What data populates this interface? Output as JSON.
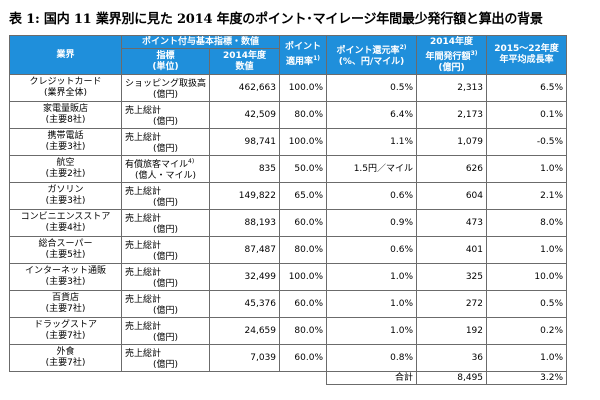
{
  "title": "表 1: 国内 11 業界別に見た 2014 年度のポイント･マイレージ年間最少発行額と算出の背景",
  "headers": {
    "industry": "業界",
    "basis_group": "ポイント付与基本指標・数値",
    "indicator": "指標",
    "indicator_unit": "(単位)",
    "value": "2014年度",
    "value_sub": "数値",
    "rate": "ポイント",
    "rate_sub": "適用率",
    "rate_note": "1)",
    "return": "ポイント還元率",
    "return_note": "2)",
    "return_sub": "(%、円/マイル)",
    "issue": "2014年度",
    "issue_sub": "年間発行額",
    "issue_note": "3)",
    "issue_unit": "(億円)",
    "cagr": "2015～22年度",
    "cagr_sub": "年平均成長率"
  },
  "rows": [
    {
      "name": "クレジットカード",
      "sub": "(業界全体)",
      "metric": "ショッピング取扱高",
      "metric_unit": "(億円)",
      "value": "462,663",
      "rate": "100.0%",
      "return": "0.5%",
      "issue": "2,313",
      "cagr": "6.5%"
    },
    {
      "name": "家電量販店",
      "sub": "(主要8社)",
      "metric": "売上総計",
      "metric_unit": "(億円)",
      "value": "42,509",
      "rate": "80.0%",
      "return": "6.4%",
      "issue": "2,173",
      "cagr": "0.1%"
    },
    {
      "name": "携帯電話",
      "sub": "(主要3社)",
      "metric": "売上総計",
      "metric_unit": "(億円)",
      "value": "98,741",
      "rate": "100.0%",
      "return": "1.1%",
      "issue": "1,079",
      "cagr": "-0.5%"
    },
    {
      "name": "航空",
      "sub": "(主要2社)",
      "metric": "有償旅客マイル",
      "metric_note": "4)",
      "metric_unit": "(億人・マイル)",
      "value": "835",
      "rate": "50.0%",
      "return": "1.5円／マイル",
      "issue": "626",
      "cagr": "1.0%"
    },
    {
      "name": "ガソリン",
      "sub": "(主要3社)",
      "metric": "売上総計",
      "metric_unit": "(億円)",
      "value": "149,822",
      "rate": "65.0%",
      "return": "0.6%",
      "issue": "604",
      "cagr": "2.1%"
    },
    {
      "name": "コンビニエンスストア",
      "sub": "(主要4社)",
      "metric": "売上総計",
      "metric_unit": "(億円)",
      "value": "88,193",
      "rate": "60.0%",
      "return": "0.9%",
      "issue": "473",
      "cagr": "8.0%"
    },
    {
      "name": "総合スーパー",
      "sub": "(主要5社)",
      "metric": "売上総計",
      "metric_unit": "(億円)",
      "value": "87,487",
      "rate": "80.0%",
      "return": "0.6%",
      "issue": "401",
      "cagr": "1.0%"
    },
    {
      "name": "インターネット通販",
      "sub": "(主要3社)",
      "metric": "売上総計",
      "metric_unit": "(億円)",
      "value": "32,499",
      "rate": "100.0%",
      "return": "1.0%",
      "issue": "325",
      "cagr": "10.0%"
    },
    {
      "name": "百貨店",
      "sub": "(主要7社)",
      "metric": "売上総計",
      "metric_unit": "(億円)",
      "value": "45,376",
      "rate": "60.0%",
      "return": "1.0%",
      "issue": "272",
      "cagr": "0.5%"
    },
    {
      "name": "ドラッグストア",
      "sub": "(主要7社)",
      "metric": "売上総計",
      "metric_unit": "(億円)",
      "value": "24,659",
      "rate": "80.0%",
      "return": "1.0%",
      "issue": "192",
      "cagr": "0.2%"
    },
    {
      "name": "外食",
      "sub": "(主要7社)",
      "metric": "売上総計",
      "metric_unit": "(億円)",
      "value": "7,039",
      "rate": "60.0%",
      "return": "0.8%",
      "issue": "36",
      "cagr": "1.0%"
    }
  ],
  "total": {
    "label": "合計",
    "issue": "8,495",
    "cagr": "3.2%"
  }
}
